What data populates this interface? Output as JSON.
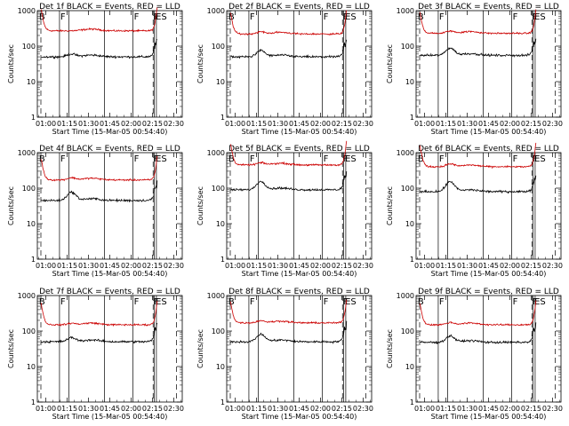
{
  "chart_data": {
    "type": "line",
    "layout": "3x3 grid",
    "x_axis": {
      "label": "Start Time (15-Mar-05 00:54:40)",
      "ticks": [
        "01:00",
        "01:15",
        "01:30",
        "01:45",
        "02:00",
        "02:15",
        "02:30"
      ],
      "range_minutes": [
        54,
        156
      ]
    },
    "y_axis": {
      "label": "Counts/sec",
      "scale": "log",
      "range": [
        1,
        1000
      ],
      "ticks": [
        "1",
        "10",
        "100",
        "1000"
      ]
    },
    "markers": {
      "dashed_lines_minutes": [
        56.5,
        135.5,
        152
      ],
      "solid_lines_minutes": [
        69.6,
        76.3,
        101.3,
        121.3,
        136.2,
        137.8
      ],
      "labels": [
        {
          "text": "B",
          "at_minutes": 55.2
        },
        {
          "text": "F",
          "at_minutes": 70.2
        },
        {
          "text": "F",
          "at_minutes": 122
        },
        {
          "text": "F",
          "at_minutes": 135.8
        },
        {
          "text": "ES",
          "at_minutes": 137.3
        }
      ]
    },
    "series_legend": {
      "black": "Events",
      "red": "LLD"
    },
    "colors": {
      "events": "#000000",
      "lld": "#cc0000"
    },
    "panels": [
      {
        "title": "Det 1f BLACK = Events, RED = LLD",
        "events_level": 50,
        "lld_level": 270,
        "ev_bump": 1.2,
        "lld_bump": 1.0
      },
      {
        "title": "Det 2f BLACK = Events, RED = LLD",
        "events_level": 50,
        "lld_level": 220,
        "ev_bump": 1.5,
        "lld_bump": 1.15
      },
      {
        "title": "Det 3f BLACK = Events, RED = LLD",
        "events_level": 55,
        "lld_level": 230,
        "ev_bump": 1.6,
        "lld_bump": 1.15
      },
      {
        "title": "Det 4f BLACK = Events, RED = LLD",
        "events_level": 45,
        "lld_level": 170,
        "ev_bump": 1.7,
        "lld_bump": 1.15
      },
      {
        "title": "Det 5f BLACK = Events, RED = LLD",
        "events_level": 90,
        "lld_level": 450,
        "ev_bump": 1.7,
        "lld_bump": 1.15
      },
      {
        "title": "Det 6f BLACK = Events, RED = LLD",
        "events_level": 80,
        "lld_level": 400,
        "ev_bump": 1.9,
        "lld_bump": 1.2
      },
      {
        "title": "Det 7f BLACK = Events, RED = LLD",
        "events_level": 50,
        "lld_level": 150,
        "ev_bump": 1.3,
        "lld_bump": 1.1
      },
      {
        "title": "Det 8f BLACK = Events, RED = LLD",
        "events_level": 50,
        "lld_level": 170,
        "ev_bump": 1.6,
        "lld_bump": 1.15
      },
      {
        "title": "Det 9f BLACK = Events, RED = LLD",
        "events_level": 48,
        "lld_level": 150,
        "ev_bump": 1.5,
        "lld_bump": 1.15
      }
    ]
  }
}
